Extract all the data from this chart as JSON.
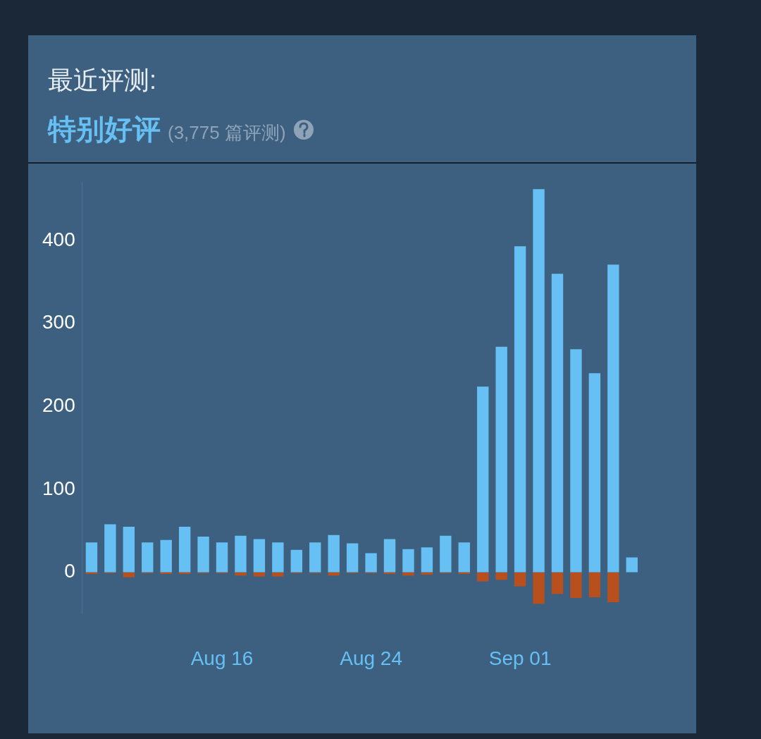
{
  "chart_data": {
    "type": "bar",
    "title": "最近评测:",
    "subtitle": "特别好评",
    "annotations": [
      "(3,775 篇评测)"
    ],
    "categories": [
      null,
      null,
      null,
      null,
      null,
      null,
      null,
      "Aug 16",
      null,
      null,
      null,
      null,
      null,
      null,
      null,
      "Aug 24",
      null,
      null,
      null,
      null,
      null,
      null,
      null,
      "Sep 01",
      null,
      null,
      null,
      null,
      null,
      null
    ],
    "series": [
      {
        "color": "#66c0f4",
        "values": [
          36,
          58,
          55,
          36,
          39,
          55,
          43,
          36,
          44,
          40,
          36,
          27,
          36,
          45,
          35,
          23,
          40,
          28,
          30,
          44,
          36,
          224,
          272,
          393,
          462,
          360,
          269,
          240,
          371,
          18
        ]
      },
      {
        "color": "#b8501e",
        "values": [
          -2,
          -1,
          -6,
          -1,
          -2,
          -2,
          -1,
          -1,
          -4,
          -5,
          -5,
          -1,
          -1,
          -4,
          -1,
          -1,
          -2,
          -4,
          -3,
          -1,
          -2,
          -11,
          -9,
          -17,
          -38,
          -26,
          -31,
          -30,
          -36,
          0
        ]
      }
    ],
    "stacked": true,
    "ylim": [
      -50,
      470
    ],
    "yticks": [
      0,
      100,
      200,
      300,
      400
    ],
    "grid": false,
    "legend": false
  }
}
